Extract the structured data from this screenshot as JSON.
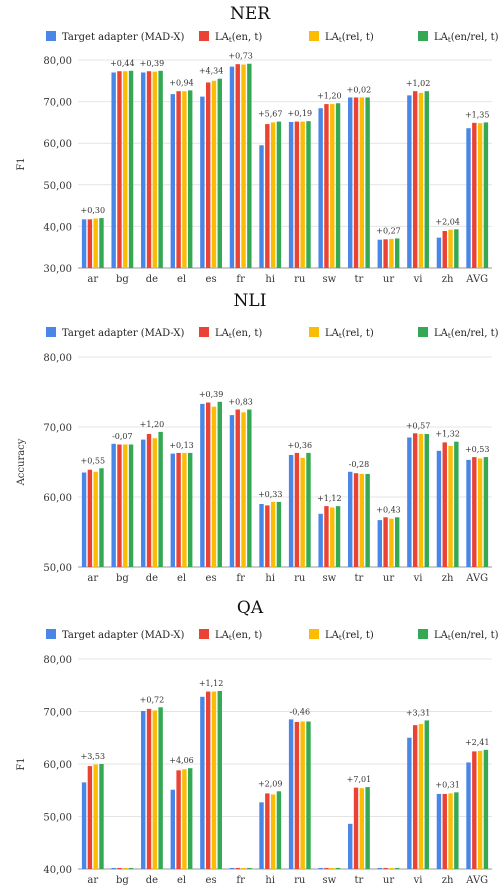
{
  "series_names": [
    "Target adapter (MAD-X)",
    "LA_t(en, t)",
    "LA_t(rel, t)",
    "LA_t(en/rel, t)"
  ],
  "legend": [
    {
      "pre": "Target adapter (MAD-X)",
      "sub": "",
      "post": ""
    },
    {
      "pre": "LA",
      "sub": "t",
      "post": "(en, t)"
    },
    {
      "pre": "LA",
      "sub": "t",
      "post": "(rel, t)"
    },
    {
      "pre": "LA",
      "sub": "t",
      "post": "(en/rel, t)"
    }
  ],
  "colors": [
    "#4a86e8",
    "#ea4335",
    "#fbbc04",
    "#34a853"
  ],
  "chart_data": [
    {
      "type": "bar",
      "title": "NER",
      "ylabel": "F1",
      "ylim": [
        30,
        80
      ],
      "yticks": [
        "30,00",
        "40,00",
        "50,00",
        "60,00",
        "70,00",
        "80,00"
      ],
      "grid": true,
      "legend_position": "top",
      "categories": [
        "ar",
        "bg",
        "de",
        "el",
        "es",
        "fr",
        "hi",
        "ru",
        "sw",
        "tr",
        "ur",
        "vi",
        "zh",
        "AVG"
      ],
      "annotations": [
        "+0,30",
        "+0,44",
        "+0,39",
        "+0,94",
        "+4,34",
        "+0,73",
        "+5,67",
        "+0,19",
        "+1,20",
        "+0,02",
        "+0,27",
        "+1,02",
        "+2,04",
        "+1,35"
      ],
      "series": [
        {
          "name": "Target adapter (MAD-X)",
          "values": [
            41.7,
            77.0,
            77.0,
            71.8,
            71.2,
            78.4,
            59.5,
            65.1,
            68.4,
            71.0,
            36.8,
            71.5,
            37.3,
            63.6
          ]
        },
        {
          "name": "LA_t(en, t)",
          "values": [
            41.7,
            77.3,
            77.3,
            72.5,
            74.6,
            79.0,
            64.6,
            65.2,
            69.4,
            71.0,
            36.9,
            72.5,
            38.9,
            64.9
          ]
        },
        {
          "name": "LA_t(rel, t)",
          "values": [
            41.9,
            77.3,
            77.2,
            72.5,
            75.0,
            78.9,
            65.0,
            65.2,
            69.4,
            71.0,
            37.0,
            72.1,
            39.2,
            64.8
          ]
        },
        {
          "name": "LA_t(en/rel, t)",
          "values": [
            42.0,
            77.4,
            77.4,
            72.7,
            75.5,
            79.1,
            65.2,
            65.3,
            69.6,
            71.0,
            37.1,
            72.5,
            39.3,
            65.0
          ]
        }
      ]
    },
    {
      "type": "bar",
      "title": "NLI",
      "ylabel": "Accuracy",
      "ylim": [
        50,
        80
      ],
      "yticks": [
        "50,00",
        "60,00",
        "70,00",
        "80,00"
      ],
      "grid": true,
      "legend_position": "top",
      "categories": [
        "ar",
        "bg",
        "de",
        "el",
        "es",
        "fr",
        "hi",
        "ru",
        "sw",
        "tr",
        "ur",
        "vi",
        "zh",
        "AVG"
      ],
      "annotations": [
        "+0,55",
        "-0,07",
        "+1,20",
        "+0,13",
        "+0,39",
        "+0,83",
        "+0,33",
        "+0,36",
        "+1,12",
        "-0,28",
        "+0,43",
        "+0,57",
        "+1,32",
        "+0,53"
      ],
      "series": [
        {
          "name": "Target adapter (MAD-X)",
          "values": [
            63.5,
            67.6,
            68.2,
            66.2,
            73.3,
            71.7,
            59.0,
            66.0,
            57.6,
            63.6,
            56.7,
            68.5,
            66.6,
            65.3
          ]
        },
        {
          "name": "LA_t(en, t)",
          "values": [
            63.9,
            67.5,
            69.0,
            66.3,
            73.5,
            72.5,
            58.8,
            66.3,
            58.7,
            63.4,
            57.1,
            69.1,
            67.8,
            65.7
          ]
        },
        {
          "name": "LA_t(rel, t)",
          "values": [
            63.6,
            67.5,
            68.4,
            66.3,
            72.9,
            72.1,
            59.3,
            65.6,
            58.5,
            63.3,
            56.9,
            69.0,
            67.3,
            65.5
          ]
        },
        {
          "name": "LA_t(en/rel, t)",
          "values": [
            64.1,
            67.5,
            69.3,
            66.3,
            73.6,
            72.5,
            59.3,
            66.3,
            58.7,
            63.3,
            57.1,
            69.0,
            67.9,
            65.7
          ]
        }
      ]
    },
    {
      "type": "bar",
      "title": "QA",
      "ylabel": "F1",
      "ylim": [
        40,
        80
      ],
      "yticks": [
        "40,00",
        "50,00",
        "60,00",
        "70,00",
        "80,00"
      ],
      "grid": true,
      "legend_position": "top",
      "categories": [
        "ar",
        "bg",
        "de",
        "el",
        "es",
        "fr",
        "hi",
        "ru",
        "sw",
        "tr",
        "ur",
        "vi",
        "zh",
        "AVG"
      ],
      "annotations": [
        "+3,53",
        "",
        "+0,72",
        "+4,06",
        "+1,12",
        "",
        "+2,09",
        "-0,46",
        "",
        "+7,01",
        "",
        "+3,31",
        "+0,31",
        "+2,41"
      ],
      "series": [
        {
          "name": "Target adapter (MAD-X)",
          "values": [
            56.5,
            40.2,
            70.1,
            55.1,
            72.8,
            40.2,
            52.7,
            68.5,
            40.2,
            48.6,
            40.2,
            65.0,
            54.3,
            60.3
          ]
        },
        {
          "name": "LA_t(en, t)",
          "values": [
            59.6,
            40.2,
            70.5,
            58.8,
            73.8,
            40.2,
            54.4,
            68.0,
            40.2,
            55.5,
            40.2,
            67.4,
            54.3,
            62.4
          ]
        },
        {
          "name": "LA_t(rel, t)",
          "values": [
            59.9,
            40.2,
            70.2,
            59.0,
            73.8,
            40.2,
            54.2,
            68.1,
            40.2,
            55.4,
            40.2,
            67.6,
            54.4,
            62.5
          ]
        },
        {
          "name": "LA_t(en/rel, t)",
          "values": [
            60.0,
            40.2,
            70.8,
            59.2,
            73.9,
            40.2,
            54.8,
            68.1,
            40.2,
            55.6,
            40.2,
            68.3,
            54.6,
            62.7
          ]
        }
      ]
    }
  ]
}
